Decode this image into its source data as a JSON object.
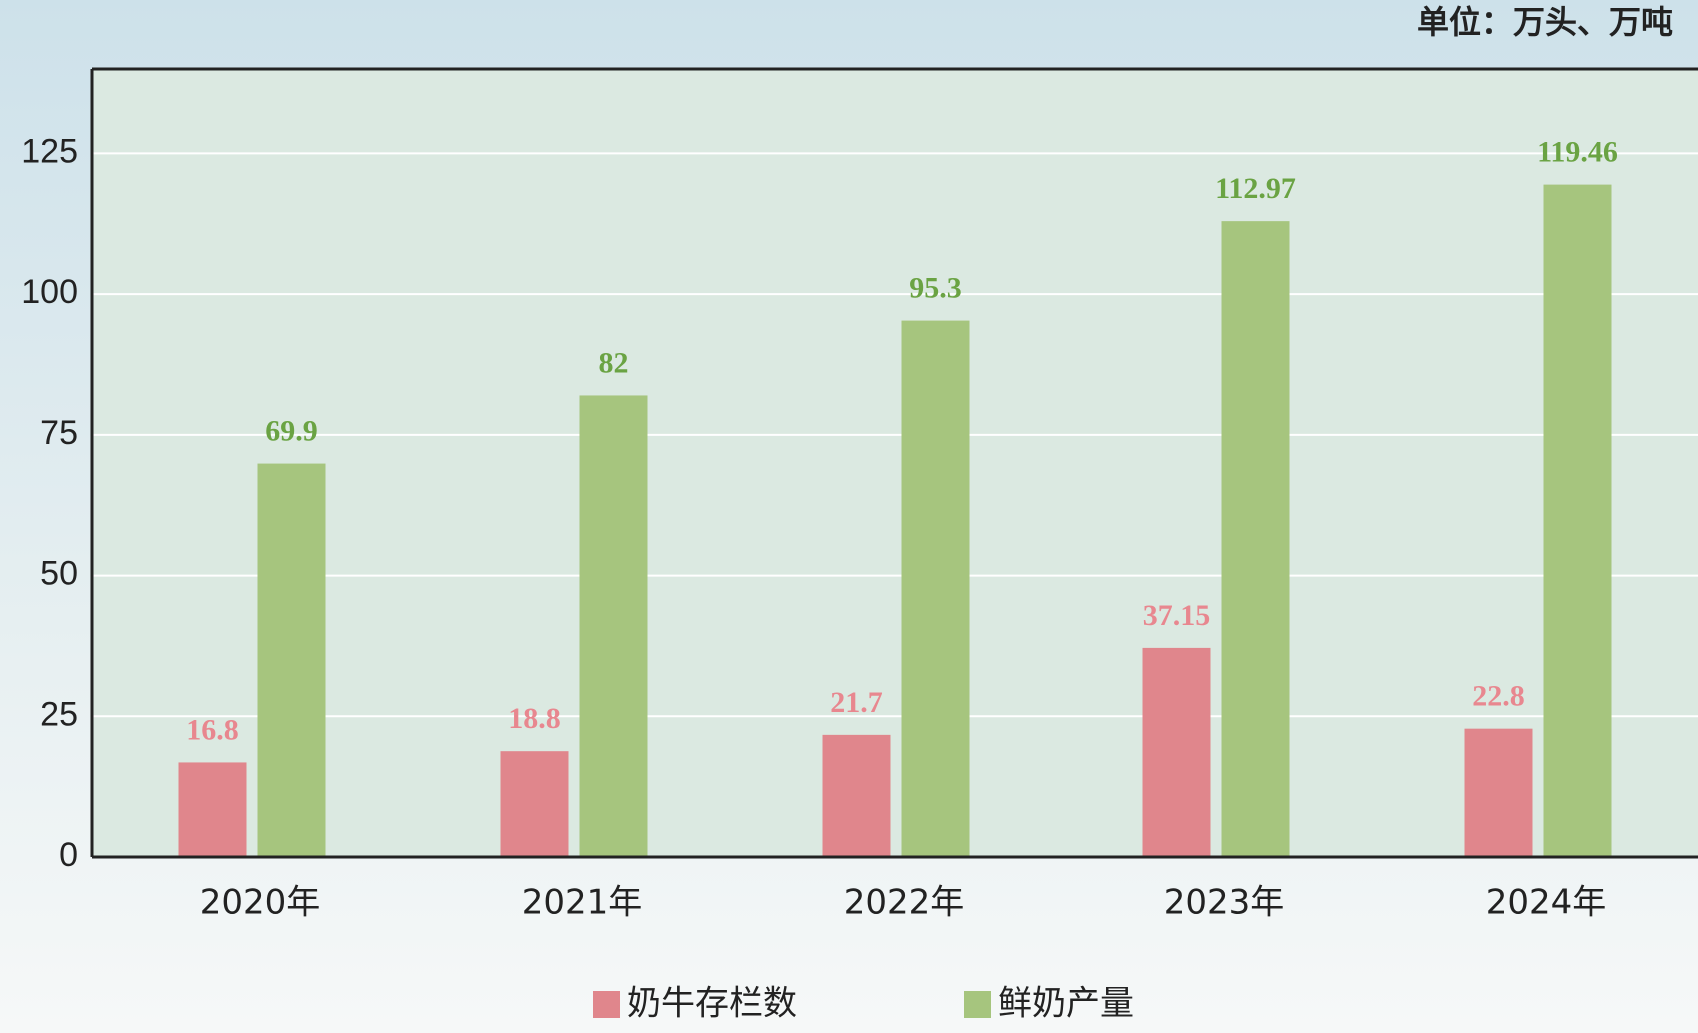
{
  "chart_data": {
    "type": "bar",
    "unit": "单位：万头、万吨",
    "categories": [
      "2020年",
      "2021年",
      "2022年",
      "2023年",
      "2024年"
    ],
    "series": [
      {
        "name": "奶牛存栏数",
        "color": "#e0868c",
        "label_color": "#e8878f",
        "values": [
          16.8,
          18.8,
          21.7,
          37.15,
          22.8
        ]
      },
      {
        "name": "鲜奶产量",
        "color": "#a6c57e",
        "label_color": "#6aa343",
        "values": [
          69.9,
          82,
          95.3,
          112.97,
          119.46
        ]
      }
    ],
    "ylim": [
      0,
      140
    ],
    "yticks": [
      0,
      25,
      50,
      75,
      100,
      125
    ],
    "grid": true
  }
}
